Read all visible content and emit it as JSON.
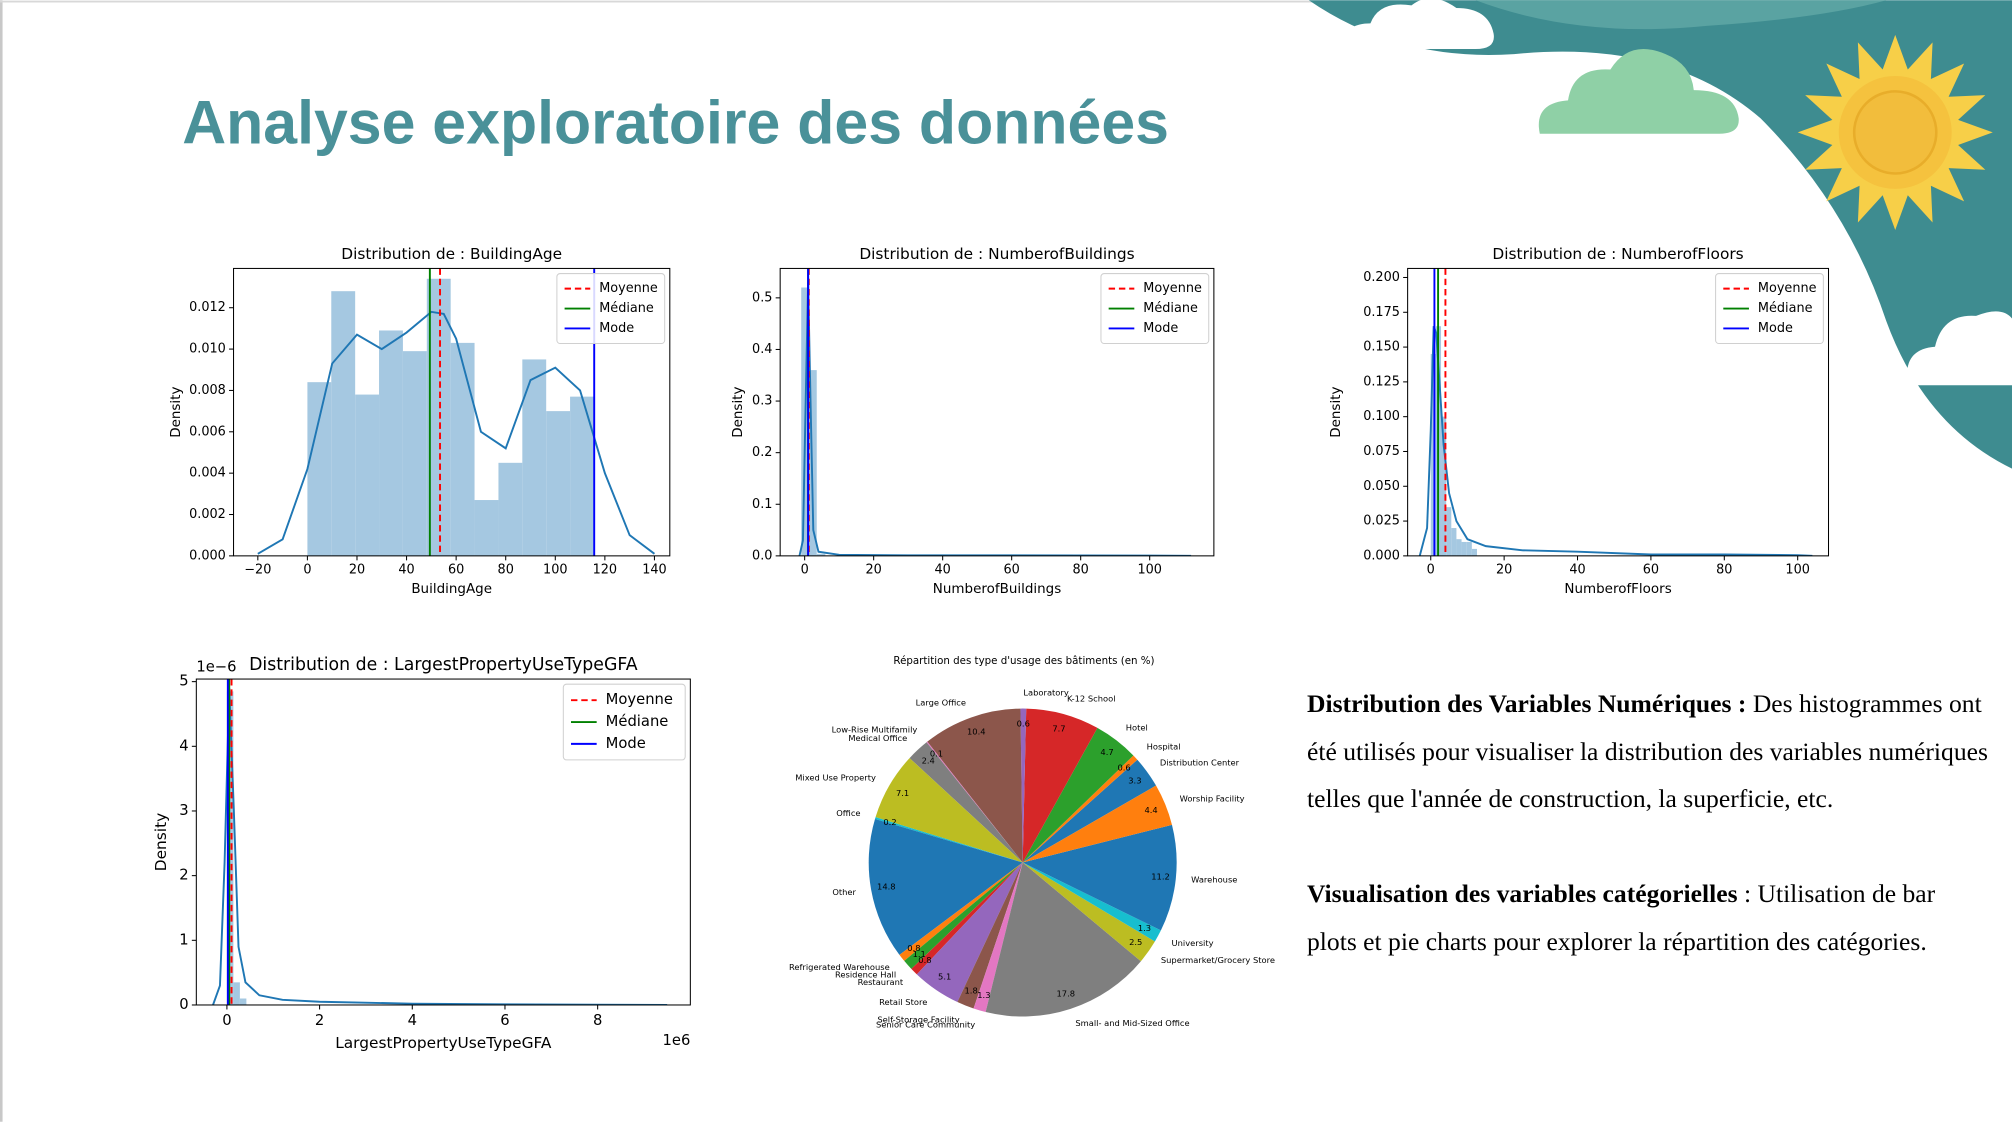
{
  "slide": {
    "title": "Analyse exploratoire des données"
  },
  "text": {
    "paragraphs": [
      {
        "bold": "Distribution des Variables Numériques :",
        "text": "Des histogrammes ont été utilisés pour visualiser la distribution des variables numériques telles que l'année de construction, la superficie, etc."
      },
      {
        "bold": "Visualisation des variables catégorielles",
        "text": ": Utilisation de bar plots et pie charts pour explorer la répartition des catégories."
      }
    ]
  },
  "chart_data": [
    {
      "type": "histogram",
      "title": "Distribution de : BuildingAge",
      "xlabel": "BuildingAge",
      "ylabel": "Density",
      "xlim": [
        -29.8,
        146.2
      ],
      "xticks": [
        {
          "value": -20,
          "label": "−20"
        },
        0,
        20,
        40,
        60,
        80,
        100,
        120,
        140
      ],
      "ylim": [
        0,
        0.0139
      ],
      "yticks": [
        {
          "value": 0,
          "label": "0.000"
        },
        {
          "value": 0.002,
          "label": "0.002"
        },
        {
          "value": 0.004,
          "label": "0.004"
        },
        {
          "value": 0.006,
          "label": "0.006"
        },
        {
          "value": 0.008,
          "label": "0.008"
        },
        {
          "value": 0.01,
          "label": "0.010"
        },
        {
          "value": 0.012,
          "label": "0.012"
        }
      ],
      "bins": [
        0,
        9.63,
        19.27,
        28.9,
        38.53,
        48.17,
        57.8,
        67.43,
        77.07,
        86.7,
        96.33,
        105.97,
        115.6
      ],
      "values": [
        0.0084,
        0.0128,
        0.0078,
        0.0109,
        0.0099,
        0.0134,
        0.0103,
        0.0027,
        0.0045,
        0.0095,
        0.007,
        0.0077
      ],
      "color": "#a5c8e1",
      "kde": {
        "color": "#1f77b4",
        "x": [
          -20,
          -10,
          0,
          10,
          20,
          30,
          40,
          50,
          55,
          60,
          70,
          80,
          90,
          100,
          110,
          120,
          130,
          140
        ],
        "values": [
          0.0001,
          0.0008,
          0.0042,
          0.0093,
          0.0107,
          0.01,
          0.0108,
          0.0118,
          0.0117,
          0.0105,
          0.006,
          0.0052,
          0.0085,
          0.0091,
          0.008,
          0.004,
          0.001,
          0.0001
        ]
      },
      "reference_lines": [
        {
          "name": "Moyenne",
          "value": 53.5,
          "color": "#ff0000",
          "dashed": true
        },
        {
          "name": "Médiane",
          "value": 49.4,
          "color": "#008000",
          "dashed": false
        },
        {
          "name": "Mode",
          "value": 115.7,
          "color": "#0000ff",
          "dashed": false
        }
      ],
      "legend": "upper right"
    },
    {
      "type": "histogram",
      "title": "Distribution de : NumberofBuildings",
      "xlabel": "NumberofBuildings",
      "ylabel": "Density",
      "xlim": [
        -7.1,
        118.6
      ],
      "xticks": [
        0,
        20,
        40,
        60,
        80,
        100
      ],
      "ylim": [
        0,
        0.557
      ],
      "yticks": [
        {
          "value": 0,
          "label": "0.0"
        },
        0.1,
        0.2,
        0.3,
        0.4,
        0.5
      ],
      "bins": [
        -1,
        1,
        3.5,
        6
      ],
      "values": [
        0.52,
        0.36,
        0.004
      ],
      "color": "#a5c8e1",
      "kde": {
        "color": "#1f77b4",
        "x": [
          -1.5,
          -0.5,
          0.3,
          1,
          1.7,
          2.5,
          4,
          10,
          30,
          60,
          100,
          112
        ],
        "values": [
          0,
          0.03,
          0.3,
          0.53,
          0.3,
          0.05,
          0.008,
          0.002,
          0.001,
          0.001,
          0.0005,
          0
        ]
      },
      "reference_lines": [
        {
          "name": "Moyenne",
          "value": 1.2,
          "color": "#ff0000",
          "dashed": true
        },
        {
          "name": "Médiane",
          "value": 1,
          "color": "#008000",
          "dashed": false
        },
        {
          "name": "Mode",
          "value": 1,
          "color": "#0000ff",
          "dashed": false
        }
      ],
      "legend": "upper right"
    },
    {
      "type": "histogram",
      "title": "Distribution de : NumberofFloors",
      "xlabel": "NumberofFloors",
      "ylabel": "Density",
      "xlim": [
        -6.3,
        108.4
      ],
      "xticks": [
        0,
        20,
        40,
        60,
        80,
        100
      ],
      "ylim": [
        0,
        0.2065
      ],
      "yticks": [
        {
          "value": 0,
          "label": "0.000"
        },
        {
          "value": 0.025,
          "label": "0.025"
        },
        {
          "value": 0.05,
          "label": "0.050"
        },
        {
          "value": 0.075,
          "label": "0.075"
        },
        {
          "value": 0.1,
          "label": "0.100"
        },
        {
          "value": 0.125,
          "label": "0.125"
        },
        {
          "value": 0.15,
          "label": "0.150"
        },
        {
          "value": 0.175,
          "label": "0.175"
        },
        {
          "value": 0.2,
          "label": "0.200"
        }
      ],
      "bins": [
        0,
        1.4,
        2.8,
        4.2,
        5.6,
        7,
        8.4,
        9.8,
        11.2,
        12.6
      ],
      "values": [
        0.145,
        0.165,
        0.1,
        0.035,
        0.02,
        0.012,
        0.01,
        0.01,
        0.005
      ],
      "color": "#a5c8e1",
      "kde": {
        "color": "#1f77b4",
        "x": [
          -3,
          -1,
          0,
          0.8,
          1.5,
          2.5,
          3.5,
          5,
          7,
          10,
          15,
          25,
          40,
          60,
          80,
          100,
          104
        ],
        "values": [
          0,
          0.02,
          0.09,
          0.165,
          0.16,
          0.12,
          0.08,
          0.045,
          0.025,
          0.012,
          0.007,
          0.004,
          0.003,
          0.001,
          0.001,
          0.0005,
          0
        ]
      },
      "reference_lines": [
        {
          "name": "Moyenne",
          "value": 4,
          "color": "#ff0000",
          "dashed": true
        },
        {
          "name": "Médiane",
          "value": 2,
          "color": "#008000",
          "dashed": false
        },
        {
          "name": "Mode",
          "value": 1,
          "color": "#0000ff",
          "dashed": false
        }
      ],
      "legend": "upper right"
    },
    {
      "type": "histogram",
      "title": "Distribution de : LargestPropertyUseTypeGFA",
      "xlabel": "LargestPropertyUseTypeGFA",
      "ylabel": "Density",
      "x_offset": "1e6",
      "y_offset": "1e−6",
      "xlim": [
        -0.66,
        10
      ],
      "xticks": [
        0,
        2,
        4,
        6,
        8
      ],
      "ylim": [
        0,
        5.04
      ],
      "yticks": [
        0,
        1,
        2,
        3,
        4,
        5
      ],
      "bins": [
        0,
        0.14,
        0.28,
        0.42
      ],
      "values": [
        4.85,
        0.35,
        0.1
      ],
      "color": "#a5c8e1",
      "kde": {
        "color": "#1f77b4",
        "x": [
          -0.3,
          -0.15,
          -0.05,
          0.05,
          0.15,
          0.25,
          0.4,
          0.7,
          1.2,
          2,
          4,
          6,
          8,
          9.5
        ],
        "values": [
          0,
          0.3,
          2.2,
          4.9,
          3,
          0.9,
          0.35,
          0.15,
          0.08,
          0.05,
          0.02,
          0.01,
          0.005,
          0
        ]
      },
      "reference_lines": [
        {
          "name": "Moyenne",
          "value": 0.1,
          "color": "#ff0000",
          "dashed": true
        },
        {
          "name": "Médiane",
          "value": 0.05,
          "color": "#008000",
          "dashed": false
        },
        {
          "name": "Mode",
          "value": 0.02,
          "color": "#0000ff",
          "dashed": false
        }
      ],
      "legend": "upper right"
    },
    {
      "type": "pie",
      "title": "Répartition des type d'usage des bâtiments (en %)",
      "categories": [
        "Distribution Center",
        "Hospital",
        "Hotel",
        "K-12 School",
        "Laboratory",
        "Large Office",
        "Low-Rise Multifamily",
        "Medical Office",
        "Mixed Use Property",
        "Office",
        "Other",
        "Refrigerated Warehouse",
        "Residence Hall",
        "Restaurant",
        "Retail Store",
        "Self-Storage Facility",
        "Senior Care Community",
        "Small- and Mid-Sized Office",
        "Supermarket/Grocery Store",
        "University",
        "Warehouse",
        "Worship Facility"
      ],
      "values": [
        3.3,
        0.6,
        4.7,
        7.7,
        0.6,
        10.4,
        0.1,
        2.4,
        7.1,
        0.2,
        14.8,
        0.8,
        1.1,
        0.8,
        5.1,
        1.8,
        1.3,
        17.8,
        2.5,
        1.3,
        11.2,
        4.4
      ],
      "colors": [
        "#1f77b4",
        "#ff7f0e",
        "#2ca02c",
        "#d62728",
        "#9467bd",
        "#8c564b",
        "#e377c2",
        "#7f7f7f",
        "#bcbd22",
        "#17becf",
        "#1f77b4",
        "#ff7f0e",
        "#2ca02c",
        "#d62728",
        "#9467bd",
        "#8c564b",
        "#e377c2",
        "#7f7f7f",
        "#bcbd22",
        "#17becf",
        "#1f77b4",
        "#ff7f0e"
      ]
    }
  ]
}
